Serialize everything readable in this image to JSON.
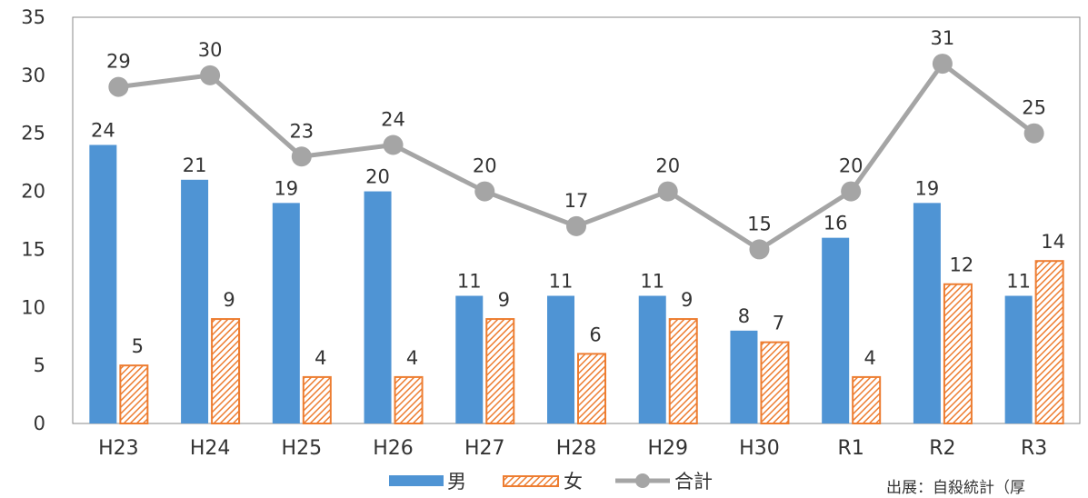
{
  "chart_data": {
    "type": "bar",
    "categories": [
      "H23",
      "H24",
      "H25",
      "H26",
      "H27",
      "H28",
      "H29",
      "H30",
      "R1",
      "R2",
      "R3"
    ],
    "series": [
      {
        "name": "男",
        "type": "bar",
        "color": "#4F94D4",
        "values": [
          24,
          21,
          19,
          20,
          11,
          11,
          11,
          8,
          16,
          19,
          11
        ]
      },
      {
        "name": "女",
        "type": "bar",
        "color": "#ED7D31",
        "pattern": "hatch",
        "values": [
          5,
          9,
          4,
          4,
          9,
          6,
          9,
          7,
          4,
          12,
          14
        ]
      },
      {
        "name": "合計",
        "type": "line",
        "color": "#A5A5A5",
        "values": [
          29,
          30,
          23,
          24,
          20,
          17,
          20,
          15,
          20,
          31,
          25
        ]
      }
    ],
    "yticks": [
      "0",
      "5",
      "10",
      "15",
      "20",
      "25",
      "30",
      "35"
    ],
    "ylim": [
      0,
      35
    ],
    "title": "",
    "xlabel": "",
    "ylabel": "",
    "legend_position": "bottom",
    "grid": false
  },
  "source_note": "出展：自殺統計（厚"
}
